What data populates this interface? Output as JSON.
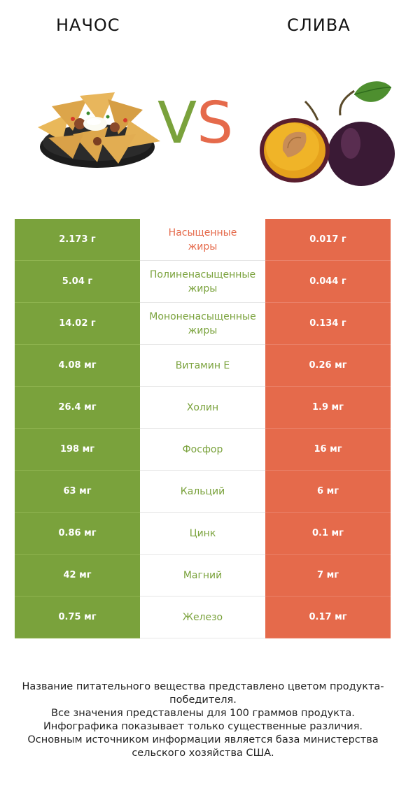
{
  "header": {
    "left_title": "НАЧОС",
    "right_title": "СЛИВА",
    "vs_v": "V",
    "vs_s": "S"
  },
  "colors": {
    "left_product": "#7aa23c",
    "right_product": "#e56a4b"
  },
  "images": {
    "left": "nachos-plate-image",
    "right": "plum-with-leaf-image"
  },
  "rows": [
    {
      "left": "2.173 г",
      "nutrient": "Насыщенные\nжиры",
      "right": "0.017 г",
      "winner": "right"
    },
    {
      "left": "5.04 г",
      "nutrient": "Полиненасыщенные\nжиры",
      "right": "0.044 г",
      "winner": "left"
    },
    {
      "left": "14.02 г",
      "nutrient": "Мононенасыщенные\nжиры",
      "right": "0.134 г",
      "winner": "left"
    },
    {
      "left": "4.08 мг",
      "nutrient": "Витамин E",
      "right": "0.26 мг",
      "winner": "left"
    },
    {
      "left": "26.4 мг",
      "nutrient": "Холин",
      "right": "1.9 мг",
      "winner": "left"
    },
    {
      "left": "198 мг",
      "nutrient": "Фосфор",
      "right": "16 мг",
      "winner": "left"
    },
    {
      "left": "63 мг",
      "nutrient": "Кальций",
      "right": "6 мг",
      "winner": "left"
    },
    {
      "left": "0.86 мг",
      "nutrient": "Цинк",
      "right": "0.1 мг",
      "winner": "left"
    },
    {
      "left": "42 мг",
      "nutrient": "Магний",
      "right": "7 мг",
      "winner": "left"
    },
    {
      "left": "0.75 мг",
      "nutrient": "Железо",
      "right": "0.17 мг",
      "winner": "left"
    }
  ],
  "footer": [
    "Название питательного вещества представлено цветом продукта-победителя.",
    "Все значения представлены для 100 граммов продукта.",
    "Инфографика показывает только существенные различия.",
    "Основным источником информации является база министерства сельского хозяйства США."
  ]
}
